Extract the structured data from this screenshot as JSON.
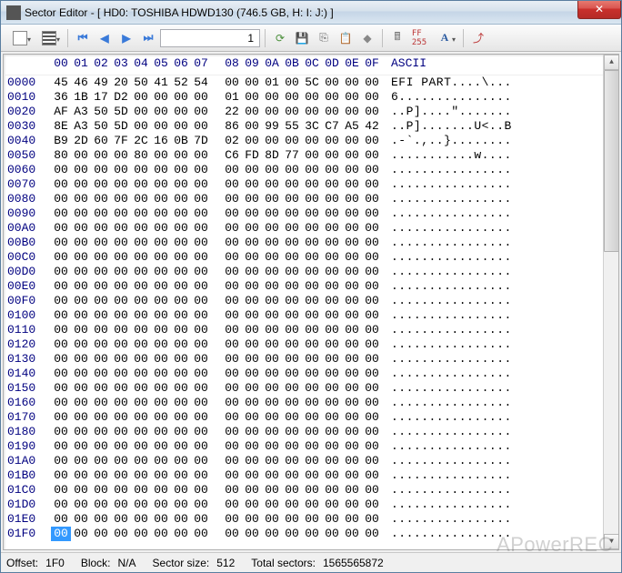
{
  "window": {
    "title": "Sector Editor - [ HD0: TOSHIBA HDWD130 (746.5 GB, H: I: J:) ]"
  },
  "toolbar": {
    "sector_input": "1"
  },
  "header": {
    "offsets": [
      "00",
      "01",
      "02",
      "03",
      "04",
      "05",
      "06",
      "07",
      "08",
      "09",
      "0A",
      "0B",
      "0C",
      "0D",
      "0E",
      "0F"
    ],
    "ascii_label": "ASCII"
  },
  "rows": [
    {
      "o": "0000",
      "h": [
        "45",
        "46",
        "49",
        "20",
        "50",
        "41",
        "52",
        "54",
        "00",
        "00",
        "01",
        "00",
        "5C",
        "00",
        "00",
        "00"
      ],
      "a": "EFI PART....\\..."
    },
    {
      "o": "0010",
      "h": [
        "36",
        "1B",
        "17",
        "D2",
        "00",
        "00",
        "00",
        "00",
        "01",
        "00",
        "00",
        "00",
        "00",
        "00",
        "00",
        "00"
      ],
      "a": "6..............."
    },
    {
      "o": "0020",
      "h": [
        "AF",
        "A3",
        "50",
        "5D",
        "00",
        "00",
        "00",
        "00",
        "22",
        "00",
        "00",
        "00",
        "00",
        "00",
        "00",
        "00"
      ],
      "a": "..P]....\"......."
    },
    {
      "o": "0030",
      "h": [
        "8E",
        "A3",
        "50",
        "5D",
        "00",
        "00",
        "00",
        "00",
        "86",
        "00",
        "99",
        "55",
        "3C",
        "C7",
        "A5",
        "42"
      ],
      "a": "..P].......U<..B"
    },
    {
      "o": "0040",
      "h": [
        "B9",
        "2D",
        "60",
        "7F",
        "2C",
        "16",
        "0B",
        "7D",
        "02",
        "00",
        "00",
        "00",
        "00",
        "00",
        "00",
        "00"
      ],
      "a": ".-`.,..}........"
    },
    {
      "o": "0050",
      "h": [
        "80",
        "00",
        "00",
        "00",
        "80",
        "00",
        "00",
        "00",
        "C6",
        "FD",
        "8D",
        "77",
        "00",
        "00",
        "00",
        "00"
      ],
      "a": "...........w...."
    },
    {
      "o": "0060",
      "h": [
        "00",
        "00",
        "00",
        "00",
        "00",
        "00",
        "00",
        "00",
        "00",
        "00",
        "00",
        "00",
        "00",
        "00",
        "00",
        "00"
      ],
      "a": "................"
    },
    {
      "o": "0070",
      "h": [
        "00",
        "00",
        "00",
        "00",
        "00",
        "00",
        "00",
        "00",
        "00",
        "00",
        "00",
        "00",
        "00",
        "00",
        "00",
        "00"
      ],
      "a": "................"
    },
    {
      "o": "0080",
      "h": [
        "00",
        "00",
        "00",
        "00",
        "00",
        "00",
        "00",
        "00",
        "00",
        "00",
        "00",
        "00",
        "00",
        "00",
        "00",
        "00"
      ],
      "a": "................"
    },
    {
      "o": "0090",
      "h": [
        "00",
        "00",
        "00",
        "00",
        "00",
        "00",
        "00",
        "00",
        "00",
        "00",
        "00",
        "00",
        "00",
        "00",
        "00",
        "00"
      ],
      "a": "................"
    },
    {
      "o": "00A0",
      "h": [
        "00",
        "00",
        "00",
        "00",
        "00",
        "00",
        "00",
        "00",
        "00",
        "00",
        "00",
        "00",
        "00",
        "00",
        "00",
        "00"
      ],
      "a": "................"
    },
    {
      "o": "00B0",
      "h": [
        "00",
        "00",
        "00",
        "00",
        "00",
        "00",
        "00",
        "00",
        "00",
        "00",
        "00",
        "00",
        "00",
        "00",
        "00",
        "00"
      ],
      "a": "................"
    },
    {
      "o": "00C0",
      "h": [
        "00",
        "00",
        "00",
        "00",
        "00",
        "00",
        "00",
        "00",
        "00",
        "00",
        "00",
        "00",
        "00",
        "00",
        "00",
        "00"
      ],
      "a": "................"
    },
    {
      "o": "00D0",
      "h": [
        "00",
        "00",
        "00",
        "00",
        "00",
        "00",
        "00",
        "00",
        "00",
        "00",
        "00",
        "00",
        "00",
        "00",
        "00",
        "00"
      ],
      "a": "................"
    },
    {
      "o": "00E0",
      "h": [
        "00",
        "00",
        "00",
        "00",
        "00",
        "00",
        "00",
        "00",
        "00",
        "00",
        "00",
        "00",
        "00",
        "00",
        "00",
        "00"
      ],
      "a": "................"
    },
    {
      "o": "00F0",
      "h": [
        "00",
        "00",
        "00",
        "00",
        "00",
        "00",
        "00",
        "00",
        "00",
        "00",
        "00",
        "00",
        "00",
        "00",
        "00",
        "00"
      ],
      "a": "................"
    },
    {
      "o": "0100",
      "h": [
        "00",
        "00",
        "00",
        "00",
        "00",
        "00",
        "00",
        "00",
        "00",
        "00",
        "00",
        "00",
        "00",
        "00",
        "00",
        "00"
      ],
      "a": "................"
    },
    {
      "o": "0110",
      "h": [
        "00",
        "00",
        "00",
        "00",
        "00",
        "00",
        "00",
        "00",
        "00",
        "00",
        "00",
        "00",
        "00",
        "00",
        "00",
        "00"
      ],
      "a": "................"
    },
    {
      "o": "0120",
      "h": [
        "00",
        "00",
        "00",
        "00",
        "00",
        "00",
        "00",
        "00",
        "00",
        "00",
        "00",
        "00",
        "00",
        "00",
        "00",
        "00"
      ],
      "a": "................"
    },
    {
      "o": "0130",
      "h": [
        "00",
        "00",
        "00",
        "00",
        "00",
        "00",
        "00",
        "00",
        "00",
        "00",
        "00",
        "00",
        "00",
        "00",
        "00",
        "00"
      ],
      "a": "................"
    },
    {
      "o": "0140",
      "h": [
        "00",
        "00",
        "00",
        "00",
        "00",
        "00",
        "00",
        "00",
        "00",
        "00",
        "00",
        "00",
        "00",
        "00",
        "00",
        "00"
      ],
      "a": "................"
    },
    {
      "o": "0150",
      "h": [
        "00",
        "00",
        "00",
        "00",
        "00",
        "00",
        "00",
        "00",
        "00",
        "00",
        "00",
        "00",
        "00",
        "00",
        "00",
        "00"
      ],
      "a": "................"
    },
    {
      "o": "0160",
      "h": [
        "00",
        "00",
        "00",
        "00",
        "00",
        "00",
        "00",
        "00",
        "00",
        "00",
        "00",
        "00",
        "00",
        "00",
        "00",
        "00"
      ],
      "a": "................"
    },
    {
      "o": "0170",
      "h": [
        "00",
        "00",
        "00",
        "00",
        "00",
        "00",
        "00",
        "00",
        "00",
        "00",
        "00",
        "00",
        "00",
        "00",
        "00",
        "00"
      ],
      "a": "................"
    },
    {
      "o": "0180",
      "h": [
        "00",
        "00",
        "00",
        "00",
        "00",
        "00",
        "00",
        "00",
        "00",
        "00",
        "00",
        "00",
        "00",
        "00",
        "00",
        "00"
      ],
      "a": "................"
    },
    {
      "o": "0190",
      "h": [
        "00",
        "00",
        "00",
        "00",
        "00",
        "00",
        "00",
        "00",
        "00",
        "00",
        "00",
        "00",
        "00",
        "00",
        "00",
        "00"
      ],
      "a": "................"
    },
    {
      "o": "01A0",
      "h": [
        "00",
        "00",
        "00",
        "00",
        "00",
        "00",
        "00",
        "00",
        "00",
        "00",
        "00",
        "00",
        "00",
        "00",
        "00",
        "00"
      ],
      "a": "................"
    },
    {
      "o": "01B0",
      "h": [
        "00",
        "00",
        "00",
        "00",
        "00",
        "00",
        "00",
        "00",
        "00",
        "00",
        "00",
        "00",
        "00",
        "00",
        "00",
        "00"
      ],
      "a": "................"
    },
    {
      "o": "01C0",
      "h": [
        "00",
        "00",
        "00",
        "00",
        "00",
        "00",
        "00",
        "00",
        "00",
        "00",
        "00",
        "00",
        "00",
        "00",
        "00",
        "00"
      ],
      "a": "................"
    },
    {
      "o": "01D0",
      "h": [
        "00",
        "00",
        "00",
        "00",
        "00",
        "00",
        "00",
        "00",
        "00",
        "00",
        "00",
        "00",
        "00",
        "00",
        "00",
        "00"
      ],
      "a": "................"
    },
    {
      "o": "01E0",
      "h": [
        "00",
        "00",
        "00",
        "00",
        "00",
        "00",
        "00",
        "00",
        "00",
        "00",
        "00",
        "00",
        "00",
        "00",
        "00",
        "00"
      ],
      "a": "................"
    },
    {
      "o": "01F0",
      "h": [
        "00",
        "00",
        "00",
        "00",
        "00",
        "00",
        "00",
        "00",
        "00",
        "00",
        "00",
        "00",
        "00",
        "00",
        "00",
        "00"
      ],
      "a": "................"
    }
  ],
  "selection": {
    "row": "01F0",
    "col": 0
  },
  "status": {
    "offset_label": "Offset:",
    "offset": "1F0",
    "block_label": "Block:",
    "block": "N/A",
    "size_label": "Sector size:",
    "size": "512",
    "total_label": "Total sectors:",
    "total": "1565565872"
  },
  "watermark": "APowerREC",
  "colors": {
    "header_text": "#000080",
    "selection_bg": "#3399ff"
  }
}
